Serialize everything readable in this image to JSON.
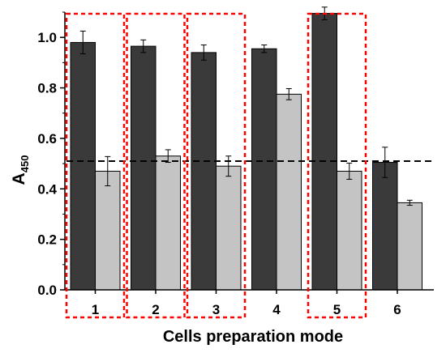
{
  "chart_data": {
    "type": "bar",
    "xlabel": "Cells preparation mode",
    "ylabel": "A",
    "ylabel_sub": "450",
    "categories": [
      "1",
      "2",
      "3",
      "4",
      "5",
      "6"
    ],
    "ylim": [
      0,
      1.1
    ],
    "yticks": [
      "0.0",
      "0.2",
      "0.4",
      "0.6",
      "0.8",
      "1.0"
    ],
    "grid": false,
    "legend": "none",
    "series": [
      {
        "color": "#3a3a3a",
        "values": [
          0.98,
          0.965,
          0.94,
          0.955,
          1.095,
          0.505
        ],
        "errors": [
          0.045,
          0.025,
          0.03,
          0.015,
          0.025,
          0.06
        ]
      },
      {
        "color": "#c4c4c4",
        "values": [
          0.47,
          0.53,
          0.49,
          0.775,
          0.47,
          0.345
        ],
        "errors": [
          0.058,
          0.025,
          0.04,
          0.022,
          0.032,
          0.01
        ]
      }
    ],
    "reference_line": {
      "y": 0.51,
      "style": "dashed",
      "color": "#000000"
    },
    "highlighted_categories": [
      "1",
      "2",
      "3",
      "5"
    ],
    "highlight_color": "#ff0000"
  }
}
